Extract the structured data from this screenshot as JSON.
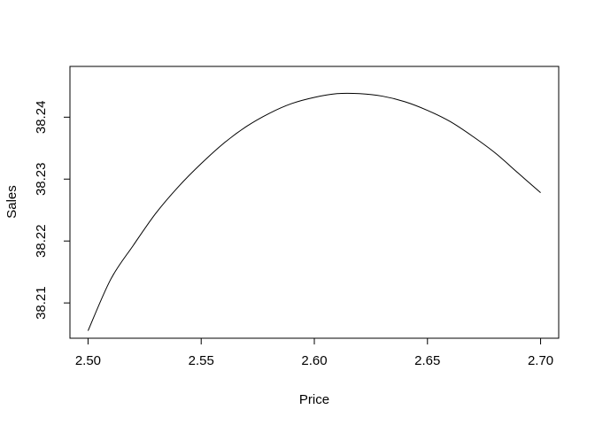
{
  "chart_data": {
    "type": "line",
    "title": "",
    "xlabel": "Price",
    "ylabel": "Sales",
    "xlim": [
      2.492,
      2.708
    ],
    "ylim": [
      38.2043,
      38.2482
    ],
    "x_ticks": [
      2.5,
      2.55,
      2.6,
      2.65,
      2.7
    ],
    "x_tick_labels": [
      "2.50",
      "2.55",
      "2.60",
      "2.65",
      "2.70"
    ],
    "y_ticks": [
      38.21,
      38.22,
      38.23,
      38.24
    ],
    "y_tick_labels": [
      "38.21",
      "38.22",
      "38.23",
      "38.24"
    ],
    "grid": false,
    "series": [
      {
        "name": "Sales",
        "x": [
          2.5,
          2.51,
          2.52,
          2.53,
          2.54,
          2.55,
          2.56,
          2.57,
          2.58,
          2.59,
          2.6,
          2.61,
          2.62,
          2.63,
          2.64,
          2.65,
          2.66,
          2.67,
          2.68,
          2.69,
          2.7
        ],
        "values": [
          38.2055,
          38.2138,
          38.2193,
          38.2245,
          38.2288,
          38.2325,
          38.2358,
          38.2385,
          38.2406,
          38.2422,
          38.2432,
          38.2438,
          38.2438,
          38.2434,
          38.2425,
          38.2411,
          38.2393,
          38.2369,
          38.2342,
          38.231,
          38.2278
        ]
      }
    ],
    "line_color": "#000000"
  }
}
